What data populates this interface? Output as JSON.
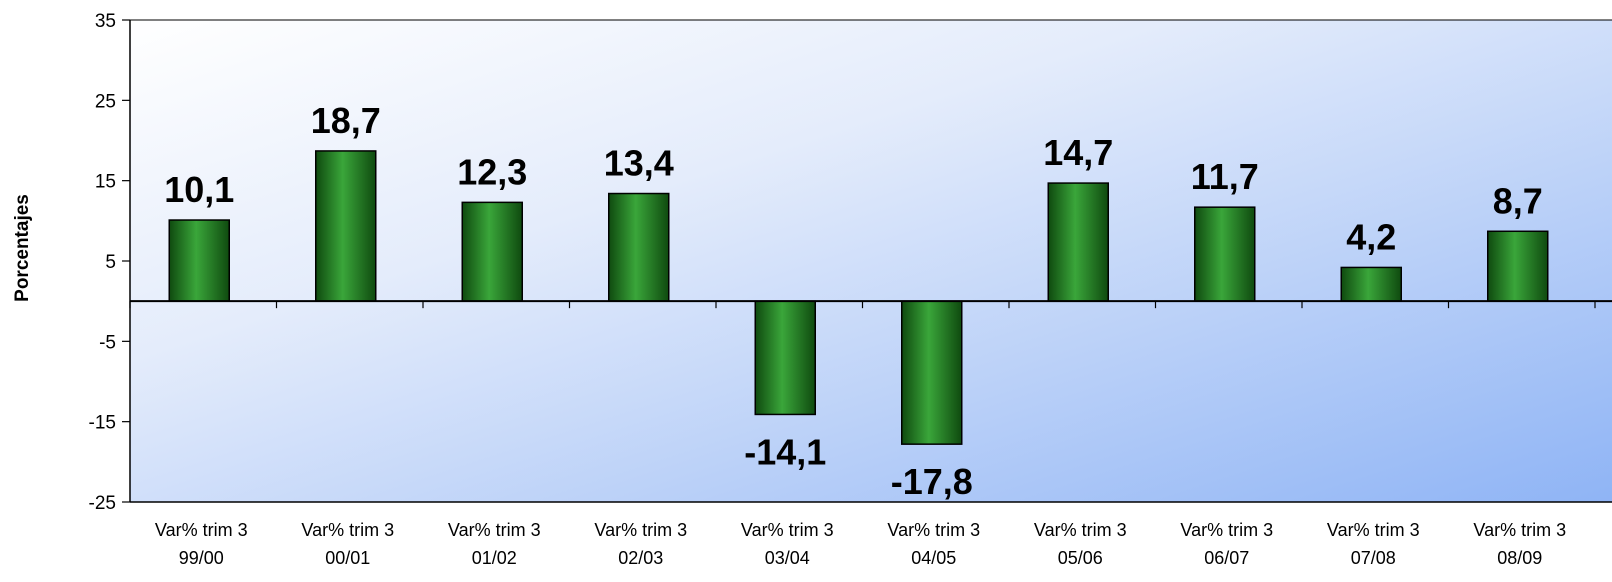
{
  "chart_data": {
    "type": "bar",
    "title": "",
    "xlabel": "",
    "ylabel": "Porcentajes",
    "ylim": [
      -25,
      35
    ],
    "yticks": [
      35,
      25,
      15,
      5,
      -5,
      -15,
      -25
    ],
    "grid": false,
    "legend": "none",
    "categories": [
      [
        "Var% trim 3",
        "99/00"
      ],
      [
        "Var% trim 3",
        "00/01"
      ],
      [
        "Var% trim 3",
        "01/02"
      ],
      [
        "Var% trim 3",
        "02/03"
      ],
      [
        "Var% trim 3",
        "03/04"
      ],
      [
        "Var% trim 3",
        "04/05"
      ],
      [
        "Var% trim 3",
        "05/06"
      ],
      [
        "Var% trim 3",
        "06/07"
      ],
      [
        "Var% trim 3",
        "07/08"
      ],
      [
        "Var% trim 3",
        "08/09"
      ]
    ],
    "values": [
      10.1,
      18.7,
      12.3,
      13.4,
      -14.1,
      -17.8,
      14.7,
      11.7,
      4.2,
      8.7
    ],
    "data_labels": [
      "10,1",
      "18,7",
      "12,3",
      "13,4",
      "-14,1",
      "-17,8",
      "14,7",
      "11,7",
      "4,2",
      "8,7"
    ],
    "colors": {
      "bar": "#1f7a1f",
      "bar_light": "#3aa63a",
      "bar_dark": "#0f4a0f",
      "plot_bg_start": "#ffffff",
      "plot_bg_end": "#8fb4f5"
    }
  }
}
